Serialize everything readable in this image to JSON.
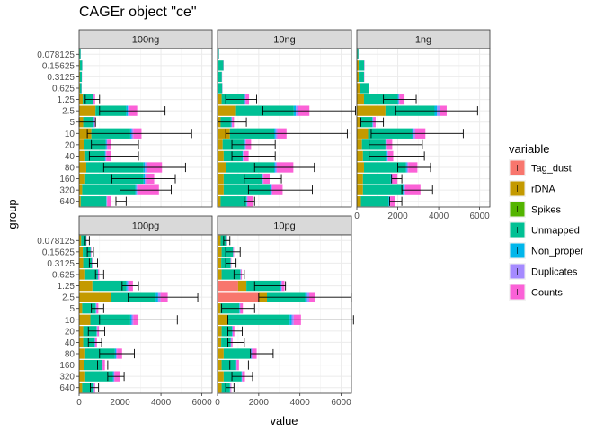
{
  "title": "CAGEr object \"ce\"",
  "chart_data": {
    "type": "bar",
    "title": "CAGEr object \"ce\"",
    "xlabel": "value",
    "ylabel": "group",
    "orientation": "horizontal",
    "stacked": true,
    "error_bars": true,
    "grid": true,
    "xlim": [
      0,
      6500
    ],
    "x_ticks": [
      0,
      2000,
      4000,
      6000
    ],
    "x_tick_labels": [
      "0",
      "2000",
      "4000",
      "6000"
    ],
    "groups": [
      "640",
      "320",
      "160",
      "80",
      "40",
      "20",
      "10",
      "5",
      "2.5",
      "1.25",
      "0.625",
      "0.3125",
      "0.15625",
      "0.078125"
    ],
    "variables": [
      "Tag_dust",
      "rDNA",
      "Spikes",
      "Unmapped",
      "Non_proper",
      "Duplicates",
      "Counts"
    ],
    "colors": {
      "Tag_dust": "#F8766D",
      "rDNA": "#C49A00",
      "Spikes": "#53B400",
      "Unmapped": "#00C094",
      "Non_proper": "#00B6EB",
      "Duplicates": "#A58AFF",
      "Counts": "#FB61D7"
    },
    "legend": {
      "title": "variable",
      "position": "right"
    },
    "panels": [
      {
        "label": "100ng",
        "bars": [
          [
            0,
            80,
            0,
            1250,
            20,
            20,
            200
          ],
          [
            0,
            150,
            0,
            2600,
            50,
            50,
            1050
          ],
          [
            0,
            300,
            0,
            2850,
            60,
            60,
            400
          ],
          [
            0,
            350,
            0,
            2800,
            70,
            80,
            750
          ],
          [
            0,
            300,
            0,
            950,
            40,
            40,
            250
          ],
          [
            0,
            250,
            0,
            1050,
            40,
            40,
            200
          ],
          [
            0,
            600,
            0,
            1900,
            70,
            80,
            400
          ],
          [
            0,
            200,
            0,
            500,
            30,
            30,
            50
          ],
          [
            0,
            800,
            0,
            1500,
            80,
            80,
            380
          ],
          [
            0,
            180,
            0,
            500,
            20,
            20,
            60
          ],
          [
            0,
            40,
            0,
            80,
            3,
            3,
            6
          ],
          [
            0,
            40,
            0,
            90,
            3,
            3,
            6
          ],
          [
            0,
            40,
            0,
            110,
            3,
            3,
            6
          ],
          [
            0,
            25,
            0,
            50,
            2,
            2,
            4
          ]
        ],
        "errors": [
          [
            1800,
            2300
          ],
          [
            2000,
            4500
          ],
          [
            1600,
            4700
          ],
          [
            1200,
            5200
          ],
          [
            500,
            2900
          ],
          [
            600,
            2900
          ],
          [
            400,
            5500
          ],
          [
            0,
            800
          ],
          [
            1000,
            4200
          ],
          [
            300,
            1000
          ],
          [
            0,
            0
          ],
          [
            0,
            0
          ],
          [
            0,
            0
          ],
          [
            0,
            0
          ]
        ]
      },
      {
        "label": "10ng",
        "bars": [
          [
            0,
            150,
            0,
            1250,
            30,
            30,
            280
          ],
          [
            0,
            300,
            0,
            2250,
            50,
            60,
            500
          ],
          [
            0,
            300,
            0,
            1850,
            40,
            40,
            300
          ],
          [
            0,
            400,
            0,
            2350,
            60,
            70,
            800
          ],
          [
            0,
            300,
            0,
            900,
            30,
            30,
            250
          ],
          [
            0,
            250,
            0,
            1050,
            40,
            40,
            250
          ],
          [
            0,
            600,
            0,
            2150,
            70,
            80,
            450
          ],
          [
            0,
            150,
            0,
            500,
            30,
            30,
            90
          ],
          [
            0,
            900,
            0,
            2800,
            100,
            110,
            550
          ],
          [
            0,
            200,
            0,
            1100,
            30,
            40,
            160
          ],
          [
            0,
            40,
            0,
            190,
            3,
            3,
            8
          ],
          [
            0,
            40,
            0,
            170,
            3,
            3,
            8
          ],
          [
            0,
            45,
            0,
            240,
            4,
            4,
            10
          ],
          [
            0,
            20,
            0,
            50,
            2,
            2,
            4
          ]
        ],
        "errors": [
          [
            1300,
            1800
          ],
          [
            1500,
            4600
          ],
          [
            1300,
            3100
          ],
          [
            1800,
            4700
          ],
          [
            700,
            2800
          ],
          [
            700,
            2800
          ],
          [
            400,
            6300
          ],
          [
            0,
            1400
          ],
          [
            2200,
            6700
          ],
          [
            400,
            1900
          ],
          [
            0,
            0
          ],
          [
            0,
            0
          ],
          [
            0,
            0
          ],
          [
            0,
            0
          ]
        ]
      },
      {
        "label": "1ng",
        "bars": [
          [
            0,
            200,
            0,
            1350,
            40,
            40,
            220
          ],
          [
            0,
            300,
            0,
            1950,
            50,
            60,
            750
          ],
          [
            0,
            300,
            0,
            1350,
            40,
            40,
            250
          ],
          [
            0,
            350,
            0,
            2050,
            50,
            60,
            450
          ],
          [
            0,
            300,
            0,
            1150,
            40,
            40,
            250
          ],
          [
            0,
            250,
            0,
            1150,
            40,
            40,
            250
          ],
          [
            0,
            550,
            0,
            2150,
            70,
            80,
            500
          ],
          [
            0,
            150,
            0,
            600,
            30,
            30,
            110
          ],
          [
            0,
            1400,
            0,
            2400,
            120,
            120,
            350
          ],
          [
            0,
            350,
            0,
            1650,
            40,
            40,
            250
          ],
          [
            0,
            150,
            0,
            420,
            10,
            10,
            20
          ],
          [
            0,
            90,
            0,
            260,
            5,
            5,
            10
          ],
          [
            0,
            90,
            0,
            270,
            5,
            5,
            10
          ],
          [
            0,
            25,
            0,
            55,
            2,
            2,
            4
          ]
        ],
        "errors": [
          [
            1600,
            2200
          ],
          [
            2200,
            3700
          ],
          [
            1700,
            2200
          ],
          [
            2000,
            3600
          ],
          [
            600,
            3300
          ],
          [
            600,
            3200
          ],
          [
            700,
            5200
          ],
          [
            200,
            1300
          ],
          [
            1900,
            5900
          ],
          [
            1300,
            2900
          ],
          [
            0,
            0
          ],
          [
            0,
            0
          ],
          [
            0,
            0
          ],
          [
            0,
            0
          ]
        ]
      },
      {
        "label": "100pg",
        "bars": [
          [
            0,
            150,
            0,
            550,
            20,
            20,
            40
          ],
          [
            0,
            300,
            0,
            1350,
            40,
            40,
            260
          ],
          [
            0,
            250,
            0,
            850,
            30,
            30,
            100
          ],
          [
            0,
            300,
            0,
            1450,
            50,
            50,
            250
          ],
          [
            0,
            200,
            0,
            550,
            20,
            20,
            80
          ],
          [
            0,
            200,
            0,
            650,
            20,
            20,
            80
          ],
          [
            0,
            550,
            0,
            1950,
            70,
            80,
            250
          ],
          [
            0,
            150,
            0,
            650,
            30,
            30,
            80
          ],
          [
            0,
            1550,
            0,
            2200,
            110,
            120,
            350
          ],
          [
            0,
            650,
            0,
            1650,
            60,
            70,
            200
          ],
          [
            0,
            300,
            0,
            600,
            20,
            20,
            40
          ],
          [
            0,
            200,
            0,
            420,
            10,
            10,
            20
          ],
          [
            0,
            180,
            0,
            380,
            10,
            10,
            20
          ],
          [
            0,
            100,
            0,
            250,
            5,
            5,
            10
          ]
        ],
        "errors": [
          [
            550,
            950
          ],
          [
            1400,
            2200
          ],
          [
            900,
            1400
          ],
          [
            1000,
            2700
          ],
          [
            450,
            1100
          ],
          [
            450,
            1250
          ],
          [
            1000,
            4800
          ],
          [
            600,
            1200
          ],
          [
            2400,
            5800
          ],
          [
            2100,
            2900
          ],
          [
            800,
            1200
          ],
          [
            500,
            900
          ],
          [
            400,
            700
          ],
          [
            300,
            500
          ]
        ]
      },
      {
        "label": "10pg",
        "bars": [
          [
            0,
            200,
            0,
            400,
            20,
            20,
            30
          ],
          [
            0,
            300,
            0,
            850,
            30,
            30,
            120
          ],
          [
            0,
            200,
            0,
            700,
            20,
            20,
            100
          ],
          [
            0,
            300,
            0,
            1300,
            40,
            40,
            220
          ],
          [
            0,
            180,
            0,
            450,
            20,
            20,
            60
          ],
          [
            0,
            200,
            0,
            500,
            20,
            20,
            80
          ],
          [
            0,
            500,
            0,
            3000,
            100,
            100,
            350
          ],
          [
            0,
            150,
            0,
            900,
            30,
            30,
            120
          ],
          [
            2000,
            400,
            0,
            1850,
            100,
            100,
            300
          ],
          [
            1000,
            400,
            0,
            1650,
            40,
            40,
            120
          ],
          [
            0,
            200,
            0,
            900,
            20,
            20,
            40
          ],
          [
            0,
            180,
            0,
            450,
            10,
            10,
            20
          ],
          [
            0,
            200,
            0,
            550,
            10,
            10,
            30
          ],
          [
            0,
            150,
            0,
            300,
            5,
            5,
            10
          ]
        ],
        "errors": [
          [
            400,
            800
          ],
          [
            700,
            1700
          ],
          [
            600,
            1500
          ],
          [
            1600,
            2700
          ],
          [
            500,
            1300
          ],
          [
            500,
            1200
          ],
          [
            500,
            6600
          ],
          [
            200,
            1800
          ],
          [
            2000,
            6500
          ],
          [
            1800,
            3300
          ],
          [
            800,
            1300
          ],
          [
            400,
            900
          ],
          [
            400,
            1100
          ],
          [
            300,
            600
          ]
        ]
      }
    ]
  }
}
